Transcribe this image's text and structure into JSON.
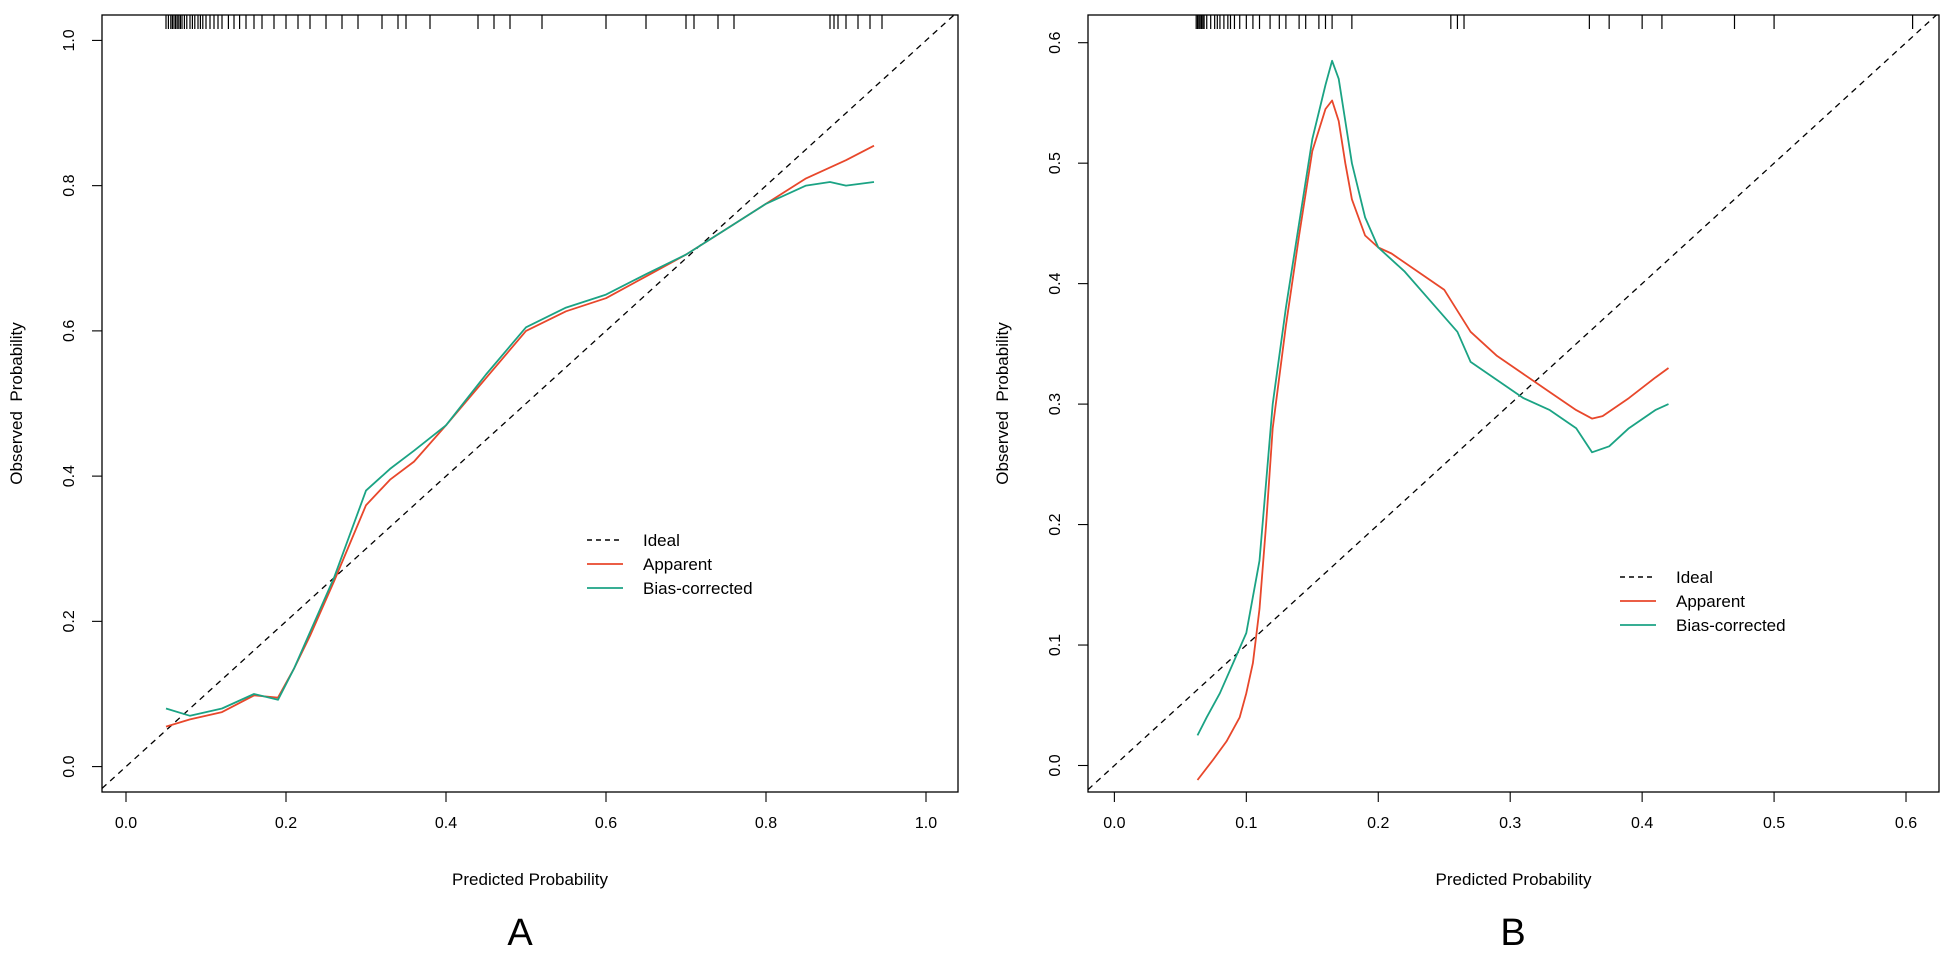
{
  "colors": {
    "ideal": "#000000",
    "apparent": "#E8472B",
    "bias_corrected": "#1BA384",
    "axes": "#000000",
    "background": "#FFFFFF"
  },
  "chart_data": [
    {
      "panel_label": "A",
      "type": "line",
      "xlabel": "Predicted Probability",
      "ylabel": "Observed  Probability",
      "xlim": [
        -0.03,
        1.04
      ],
      "ylim": [
        -0.035,
        1.035
      ],
      "xticks": [
        0.0,
        0.2,
        0.4,
        0.6,
        0.8,
        1.0
      ],
      "xtick_labels": [
        "0.0",
        "0.2",
        "0.4",
        "0.6",
        "0.8",
        "1.0"
      ],
      "yticks": [
        0.0,
        0.2,
        0.4,
        0.6,
        0.8,
        1.0
      ],
      "ytick_labels": [
        "0.0",
        "0.2",
        "0.4",
        "0.6",
        "0.8",
        "1.0"
      ],
      "grid": false,
      "legend_position": "center-right",
      "legend": [
        "Ideal",
        "Apparent",
        "Bias-corrected"
      ],
      "rug": [
        0.05,
        0.053,
        0.056,
        0.058,
        0.06,
        0.062,
        0.064,
        0.066,
        0.068,
        0.07,
        0.073,
        0.076,
        0.08,
        0.083,
        0.086,
        0.09,
        0.093,
        0.096,
        0.1,
        0.105,
        0.11,
        0.115,
        0.12,
        0.128,
        0.135,
        0.142,
        0.15,
        0.16,
        0.17,
        0.185,
        0.2,
        0.215,
        0.23,
        0.25,
        0.27,
        0.29,
        0.32,
        0.34,
        0.35,
        0.38,
        0.44,
        0.46,
        0.48,
        0.52,
        0.6,
        0.65,
        0.7,
        0.71,
        0.74,
        0.76,
        0.88,
        0.885,
        0.89,
        0.9,
        0.915,
        0.93,
        0.945
      ],
      "series": [
        {
          "name": "Ideal",
          "style": "dashed",
          "x": [
            -0.03,
            1.04
          ],
          "y": [
            -0.03,
            1.04
          ]
        },
        {
          "name": "Apparent",
          "style": "solid",
          "x": [
            0.05,
            0.08,
            0.12,
            0.16,
            0.19,
            0.21,
            0.23,
            0.26,
            0.3,
            0.33,
            0.36,
            0.4,
            0.45,
            0.5,
            0.55,
            0.6,
            0.65,
            0.7,
            0.75,
            0.8,
            0.85,
            0.9,
            0.935
          ],
          "y": [
            0.055,
            0.065,
            0.075,
            0.098,
            0.095,
            0.135,
            0.18,
            0.255,
            0.36,
            0.395,
            0.42,
            0.47,
            0.535,
            0.6,
            0.627,
            0.645,
            0.675,
            0.705,
            0.74,
            0.775,
            0.81,
            0.835,
            0.855
          ]
        },
        {
          "name": "Bias-corrected",
          "style": "solid",
          "x": [
            0.05,
            0.08,
            0.12,
            0.16,
            0.19,
            0.21,
            0.23,
            0.26,
            0.3,
            0.33,
            0.36,
            0.4,
            0.45,
            0.5,
            0.55,
            0.6,
            0.65,
            0.7,
            0.75,
            0.8,
            0.85,
            0.88,
            0.9,
            0.935
          ],
          "y": [
            0.08,
            0.07,
            0.08,
            0.1,
            0.092,
            0.135,
            0.185,
            0.26,
            0.38,
            0.41,
            0.435,
            0.47,
            0.54,
            0.605,
            0.632,
            0.65,
            0.678,
            0.705,
            0.74,
            0.775,
            0.8,
            0.805,
            0.8,
            0.805
          ]
        }
      ]
    },
    {
      "panel_label": "B",
      "type": "line",
      "xlabel": "Predicted Probability",
      "ylabel": "Observed  Probability",
      "xlim": [
        -0.02,
        0.625
      ],
      "ylim": [
        -0.022,
        0.623
      ],
      "xticks": [
        0.0,
        0.1,
        0.2,
        0.3,
        0.4,
        0.5,
        0.6
      ],
      "xtick_labels": [
        "0.0",
        "0.1",
        "0.2",
        "0.3",
        "0.4",
        "0.5",
        "0.6"
      ],
      "yticks": [
        0.0,
        0.1,
        0.2,
        0.3,
        0.4,
        0.5,
        0.6
      ],
      "ytick_labels": [
        "0.0",
        "0.1",
        "0.2",
        "0.3",
        "0.4",
        "0.5",
        "0.6"
      ],
      "grid": false,
      "legend_position": "center-right",
      "legend": [
        "Ideal",
        "Apparent",
        "Bias-corrected"
      ],
      "rug": [
        0.062,
        0.063,
        0.064,
        0.065,
        0.066,
        0.067,
        0.068,
        0.07,
        0.073,
        0.076,
        0.078,
        0.08,
        0.083,
        0.086,
        0.088,
        0.091,
        0.095,
        0.1,
        0.105,
        0.11,
        0.118,
        0.125,
        0.13,
        0.14,
        0.145,
        0.155,
        0.16,
        0.165,
        0.18,
        0.255,
        0.26,
        0.265,
        0.36,
        0.375,
        0.4,
        0.415,
        0.47,
        0.5,
        0.605
      ],
      "series": [
        {
          "name": "Ideal",
          "style": "dashed",
          "x": [
            -0.02,
            0.625
          ],
          "y": [
            -0.02,
            0.625
          ]
        },
        {
          "name": "Apparent",
          "style": "solid",
          "x": [
            0.063,
            0.075,
            0.085,
            0.095,
            0.1,
            0.105,
            0.11,
            0.115,
            0.12,
            0.13,
            0.14,
            0.15,
            0.16,
            0.165,
            0.17,
            0.175,
            0.18,
            0.19,
            0.2,
            0.21,
            0.23,
            0.25,
            0.27,
            0.29,
            0.31,
            0.33,
            0.35,
            0.362,
            0.37,
            0.39,
            0.41,
            0.42
          ],
          "y": [
            -0.012,
            0.005,
            0.02,
            0.04,
            0.06,
            0.085,
            0.13,
            0.2,
            0.28,
            0.365,
            0.44,
            0.51,
            0.545,
            0.552,
            0.535,
            0.5,
            0.47,
            0.44,
            0.43,
            0.425,
            0.41,
            0.395,
            0.36,
            0.34,
            0.325,
            0.31,
            0.295,
            0.288,
            0.29,
            0.305,
            0.322,
            0.33
          ]
        },
        {
          "name": "Bias-corrected",
          "style": "solid",
          "x": [
            0.063,
            0.07,
            0.08,
            0.09,
            0.1,
            0.105,
            0.11,
            0.12,
            0.13,
            0.14,
            0.15,
            0.16,
            0.165,
            0.17,
            0.18,
            0.19,
            0.2,
            0.22,
            0.24,
            0.26,
            0.27,
            0.29,
            0.31,
            0.33,
            0.35,
            0.362,
            0.375,
            0.39,
            0.41,
            0.42
          ],
          "y": [
            0.025,
            0.04,
            0.06,
            0.085,
            0.11,
            0.14,
            0.17,
            0.3,
            0.38,
            0.45,
            0.52,
            0.565,
            0.585,
            0.57,
            0.5,
            0.455,
            0.43,
            0.41,
            0.385,
            0.36,
            0.335,
            0.32,
            0.305,
            0.295,
            0.28,
            0.26,
            0.265,
            0.28,
            0.295,
            0.3
          ]
        }
      ]
    }
  ]
}
